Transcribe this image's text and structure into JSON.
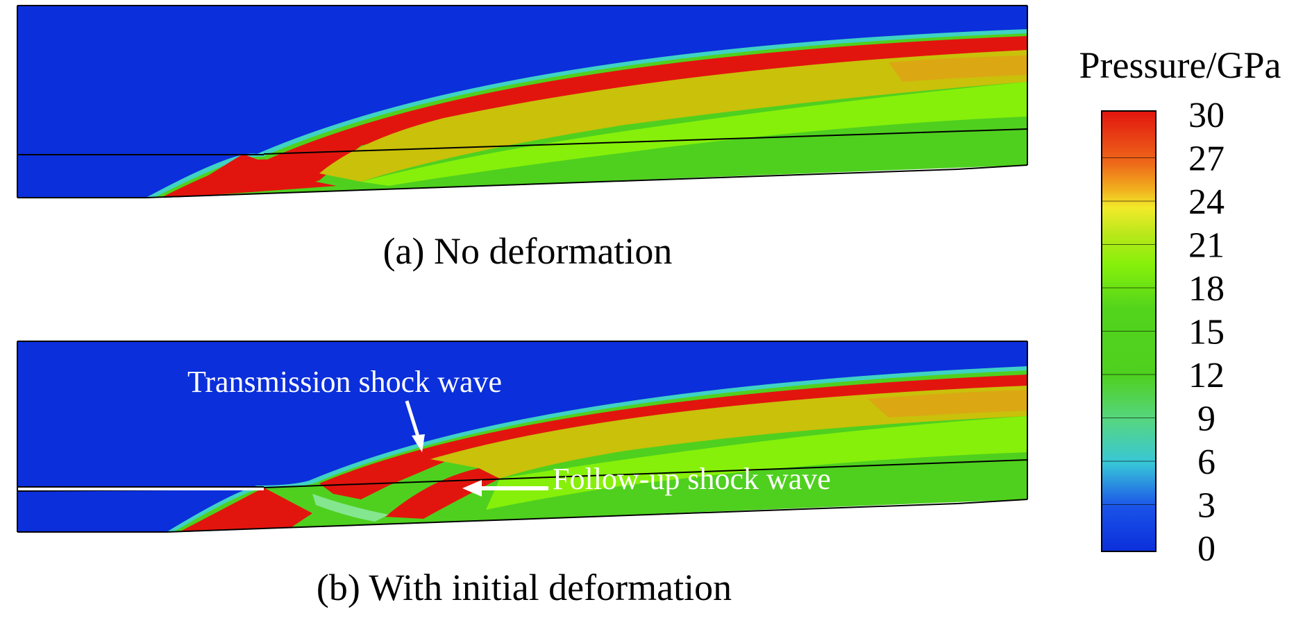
{
  "panels": [
    {
      "caption": "(a) No deformation"
    },
    {
      "caption": "(b) With initial deformation"
    }
  ],
  "annotations": {
    "transmission": "Transmission shock wave",
    "followup": "Follow-up shock wave"
  },
  "legend": {
    "title": "Pressure/GPa",
    "ticks": [
      "30",
      "27",
      "24",
      "21",
      "18",
      "15",
      "12",
      "9",
      "6",
      "3",
      "0"
    ],
    "colors": {
      "blue": "#0b2fdb",
      "cyan": "#3fd2c4",
      "green": "#4fd01f",
      "lime": "#86f00a",
      "yellow": "#c9c10a",
      "orange": "#e8981a",
      "red": "#e2150e"
    }
  }
}
